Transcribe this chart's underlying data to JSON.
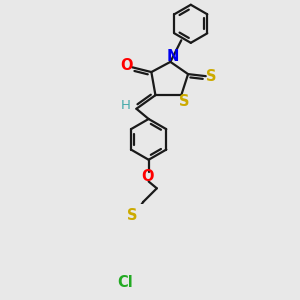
{
  "background_color": "#e8e8e8",
  "bond_color": "#1a1a1a",
  "bond_width": 1.6,
  "colors": {
    "O": "#ff0000",
    "N": "#0000ee",
    "S": "#ccaa00",
    "H": "#44aaaa",
    "Cl": "#22aa22",
    "C": "#1a1a1a"
  },
  "label_fontsize": 10.5
}
